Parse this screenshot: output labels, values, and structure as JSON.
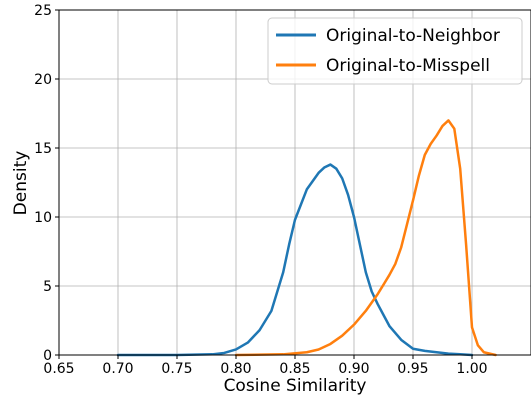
{
  "chart_data": {
    "type": "line",
    "title": "",
    "xlabel": "Cosine Similarity",
    "ylabel": "Density",
    "xlim": [
      0.65,
      1.05
    ],
    "ylim": [
      0,
      25
    ],
    "x_ticks": [
      "0.65",
      "0.70",
      "0.75",
      "0.80",
      "0.85",
      "0.90",
      "0.95",
      "1.00"
    ],
    "y_ticks": [
      "0",
      "5",
      "10",
      "15",
      "20",
      "25"
    ],
    "grid": true,
    "legend_position": "top-right",
    "series": [
      {
        "name": "Original-to-Neighbor",
        "color": "#1f77b4",
        "x": [
          0.7,
          0.75,
          0.78,
          0.79,
          0.8,
          0.81,
          0.82,
          0.83,
          0.84,
          0.845,
          0.85,
          0.86,
          0.87,
          0.875,
          0.88,
          0.885,
          0.89,
          0.895,
          0.9,
          0.905,
          0.91,
          0.915,
          0.92,
          0.93,
          0.94,
          0.95,
          0.96,
          0.97,
          0.98,
          0.99,
          1.0
        ],
        "y": [
          0.0,
          0.0,
          0.05,
          0.15,
          0.4,
          0.9,
          1.8,
          3.2,
          6.0,
          8.0,
          9.8,
          12.0,
          13.2,
          13.6,
          13.8,
          13.5,
          12.8,
          11.6,
          10.0,
          8.0,
          6.0,
          4.6,
          3.7,
          2.1,
          1.1,
          0.45,
          0.3,
          0.2,
          0.1,
          0.05,
          0.0
        ]
      },
      {
        "name": "Original-to-Misspell",
        "color": "#ff7f0e",
        "x": [
          0.8,
          0.84,
          0.86,
          0.87,
          0.88,
          0.89,
          0.9,
          0.91,
          0.92,
          0.93,
          0.935,
          0.94,
          0.945,
          0.95,
          0.955,
          0.96,
          0.965,
          0.97,
          0.975,
          0.98,
          0.985,
          0.99,
          0.995,
          1.0,
          1.005,
          1.01,
          1.02
        ],
        "y": [
          0.0,
          0.05,
          0.2,
          0.4,
          0.8,
          1.4,
          2.2,
          3.2,
          4.4,
          5.8,
          6.6,
          7.8,
          9.5,
          11.2,
          13.0,
          14.5,
          15.3,
          15.9,
          16.6,
          17.0,
          16.4,
          13.5,
          8.0,
          2.0,
          0.7,
          0.2,
          0.0
        ]
      }
    ]
  }
}
